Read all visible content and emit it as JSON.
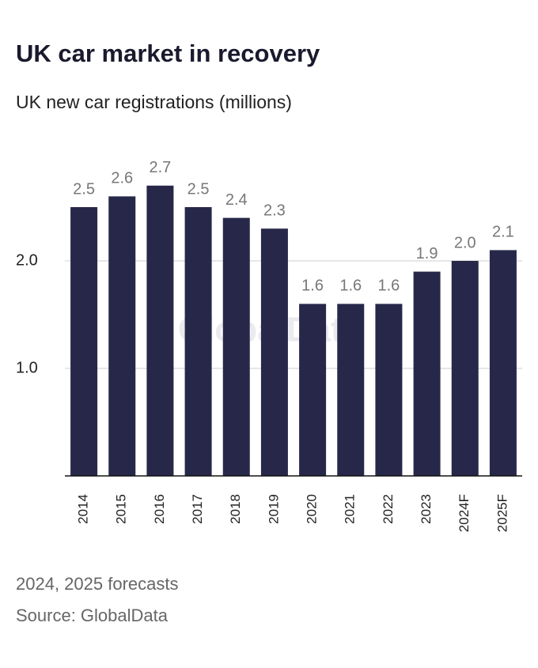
{
  "chart_data": {
    "type": "bar",
    "title": "UK car market in recovery",
    "subtitle": "UK new car registrations (millions)",
    "categories": [
      "2014",
      "2015",
      "2016",
      "2017",
      "2018",
      "2019",
      "2020",
      "2021",
      "2022",
      "2023",
      "2024F",
      "2025F"
    ],
    "values": [
      2.5,
      2.6,
      2.7,
      2.5,
      2.4,
      2.3,
      1.6,
      1.6,
      1.6,
      1.9,
      2.0,
      2.1
    ],
    "value_labels": [
      "2.5",
      "2.6",
      "2.7",
      "2.5",
      "2.4",
      "2.3",
      "1.6",
      "1.6",
      "1.6",
      "1.9",
      "2.0",
      "2.1"
    ],
    "color": "#272849",
    "ylim": [
      0,
      3
    ],
    "yticks": [
      {
        "value": 1,
        "label": "1.0"
      },
      {
        "value": 2,
        "label": "2.0"
      }
    ],
    "grid": true,
    "watermark": "GlobalData",
    "notes": [
      "2024, 2025 forecasts",
      "Source: GlobalData"
    ]
  }
}
